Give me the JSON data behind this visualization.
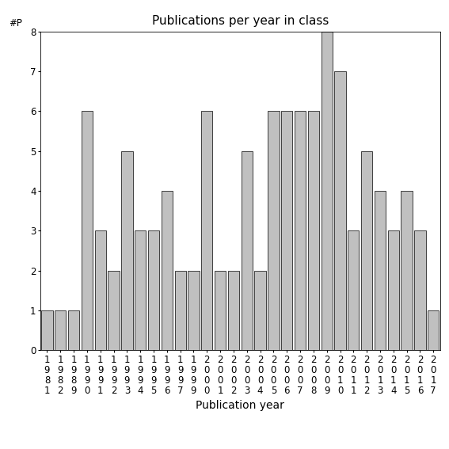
{
  "years": [
    "1981",
    "1982",
    "1989",
    "1990",
    "1991",
    "1992",
    "1993",
    "1994",
    "1995",
    "1996",
    "1997",
    "1999",
    "2000",
    "2001",
    "2002",
    "2003",
    "2004",
    "2005",
    "2006",
    "2007",
    "2008",
    "2009",
    "2010",
    "2011",
    "2012",
    "2013",
    "2014",
    "2015",
    "2016",
    "2017"
  ],
  "values": [
    1,
    1,
    1,
    6,
    3,
    2,
    5,
    3,
    3,
    4,
    2,
    2,
    6,
    2,
    2,
    5,
    2,
    6,
    6,
    6,
    6,
    8,
    7,
    3,
    5,
    4,
    3,
    4,
    3,
    1
  ],
  "bar_color": "#c0c0c0",
  "bar_edge_color": "#000000",
  "title": "Publications per year in class",
  "xlabel": "Publication year",
  "ylabel": "#P",
  "ylim": [
    0,
    8
  ],
  "yticks": [
    0,
    1,
    2,
    3,
    4,
    5,
    6,
    7,
    8
  ],
  "bg_color": "#ffffff",
  "title_fontsize": 11,
  "label_fontsize": 10,
  "tick_fontsize": 8.5
}
